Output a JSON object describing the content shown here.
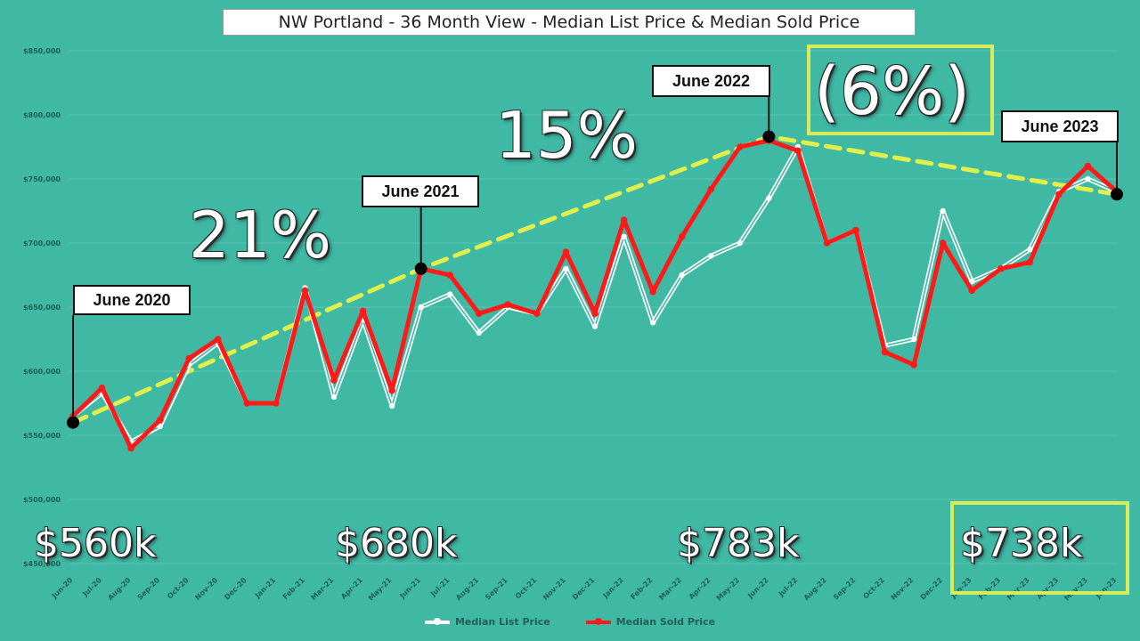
{
  "chart_data": {
    "type": "line",
    "title": "NW Portland - 36 Month View - Median List Price & Median Sold Price",
    "categories": [
      "Jun-20",
      "Jul-20",
      "Aug-20",
      "Sep-20",
      "Oct-20",
      "Nov-20",
      "Dec-20",
      "Jan-21",
      "Feb-21",
      "Mar-21",
      "Apr-21",
      "May-21",
      "Jun-21",
      "Jul-21",
      "Aug-21",
      "Sep-21",
      "Oct-21",
      "Nov-21",
      "Dec-21",
      "Jan-22",
      "Feb-22",
      "Mar-22",
      "Apr-22",
      "May-22",
      "Jun-22",
      "Jul-22",
      "Aug-22",
      "Sep-22",
      "Oct-22",
      "Nov-22",
      "Dec-22",
      "Jan-23",
      "Feb-23",
      "Mar-23",
      "Apr-23",
      "May-23",
      "Jun-23"
    ],
    "yticks": [
      "$850,000",
      "$800,000",
      "$750,000",
      "$700,000",
      "$650,000",
      "$600,000",
      "$550,000",
      "$500,000",
      "$450,000"
    ],
    "ylim": [
      450000,
      850000
    ],
    "series": [
      {
        "name": "Median List Price",
        "color": "#ffffff",
        "values": [
          565000,
          583000,
          545000,
          557000,
          605000,
          622000,
          575000,
          575000,
          665000,
          580000,
          640000,
          573000,
          650000,
          660000,
          630000,
          650000,
          645000,
          680000,
          635000,
          705000,
          638000,
          675000,
          690000,
          700000,
          735000,
          775000,
          700000,
          710000,
          620000,
          625000,
          725000,
          670000,
          680000,
          695000,
          740000,
          750000,
          740000
        ]
      },
      {
        "name": "Median Sold Price",
        "color": "#ff1a1a",
        "values": [
          565000,
          587000,
          540000,
          562000,
          610000,
          625000,
          575000,
          575000,
          663000,
          593000,
          647000,
          585000,
          680000,
          675000,
          645000,
          652000,
          645000,
          693000,
          645000,
          718000,
          662000,
          705000,
          742000,
          775000,
          780000,
          772000,
          700000,
          710000,
          615000,
          605000,
          700000,
          663000,
          680000,
          685000,
          738000,
          760000,
          740000
        ]
      }
    ],
    "trend_points": [
      {
        "label": "June 2020",
        "value": 560000
      },
      {
        "label": "June 2021",
        "value": 680000
      },
      {
        "label": "June 2022",
        "value": 783000
      },
      {
        "label": "June 2023",
        "value": 738000
      }
    ],
    "annotations": {
      "pct1": "21%",
      "pct2": "15%",
      "pct3": "(6%)",
      "p1": "$560k",
      "p2": "$680k",
      "p3": "$783k",
      "p4": "$738k"
    },
    "colors": {
      "background": "#3fb8a4",
      "trend": "#e0ef4a",
      "highlight": "#d8ec5a",
      "grid": "#5cc6b4"
    }
  }
}
